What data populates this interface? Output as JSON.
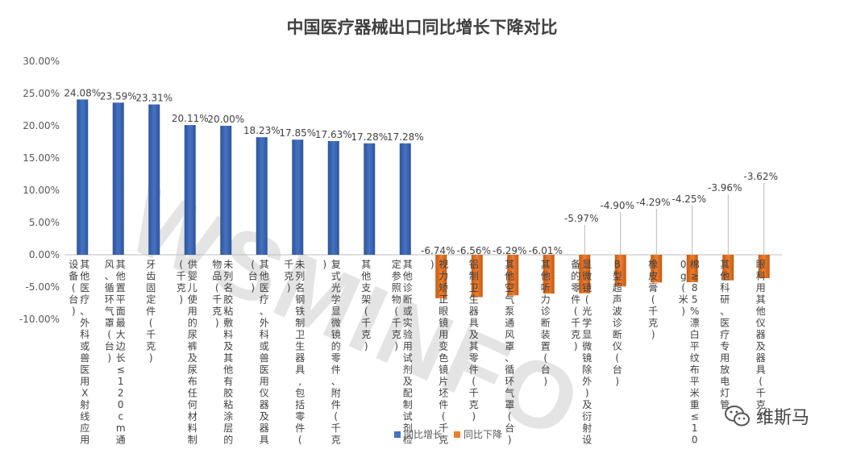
{
  "chart_data": {
    "type": "bar",
    "title": "中国医疗器械出口同比增长下降对比",
    "ylim": [
      -0.1,
      0.3
    ],
    "y_ticks": [
      "-10.00%",
      "-5.00%",
      "0.00%",
      "5.00%",
      "10.00%",
      "15.00%",
      "20.00%",
      "25.00%",
      "30.00%"
    ],
    "grid": false,
    "legend_position": "bottom",
    "categories": [
      "其他医疗、外科或兽医用X射线应用设备(台)",
      "其他置平面最大边长≤120cm通风、循环气罩(台)",
      "牙齿固定件(千克)",
      "供婴儿使用的尿裤及尿布任何材料制(千克)",
      "未列名胶粘敷料及其他有胶粘涂层的物品(千克)",
      "其他医疗、外科或兽医用仪器及器具(台)",
      "未列名钢铁制卫生器具,包括零件(千克)",
      "复式光学显微镜的零件、附件(千克)",
      "其他支架(千克)",
      "其他诊断或实验用试剂及配制试剂检定参照物(千克)",
      "视力矫正眼镜用变色镜片坯件(千克)",
      "铝制卫生器具及其零件(千克)",
      "其他空气泵通风罩、循环气罩(台)",
      "其他听力诊断装置(台)",
      "显微镜(光学显微镜除外)及衍射设备的零件(千克)",
      "B型超声波诊断仪(台)",
      "橡皮膏(千克)",
      "棉≥85%漂白平纹布平米重≤100g(米)",
      "其他科研、医疗专用放电灯管",
      "眼科用其他仪器及器具(千克)"
    ],
    "series": [
      {
        "name": "同比增长",
        "color": "#4472C4",
        "values": [
          0.2408,
          0.2359,
          0.2331,
          0.2011,
          0.2,
          0.1823,
          0.1785,
          0.1763,
          0.1728,
          0.1728,
          null,
          null,
          null,
          null,
          null,
          null,
          null,
          null,
          null,
          null
        ]
      },
      {
        "name": "同比下降",
        "color": "#ED7D31",
        "values": [
          null,
          null,
          null,
          null,
          null,
          null,
          null,
          null,
          null,
          null,
          -0.0674,
          -0.0656,
          -0.0629,
          -0.0601,
          -0.0597,
          -0.049,
          -0.0429,
          -0.0425,
          -0.0396,
          -0.0362
        ]
      }
    ],
    "data_labels": [
      "24.08%",
      "23.59%",
      "23.31%",
      "20.11%",
      "20.00%",
      "18.23%",
      "17.85%",
      "17.63%",
      "17.28%",
      "17.28%",
      "-6.74%",
      "-6.56%",
      "-6.29%",
      "-6.01%",
      "-5.97%",
      "-4.90%",
      "-4.29%",
      "-4.25%",
      "-3.96%",
      "-3.62%"
    ]
  },
  "watermark": "WSMINFO",
  "brand": {
    "text": "维斯马",
    "icon": "wechat-icon"
  }
}
